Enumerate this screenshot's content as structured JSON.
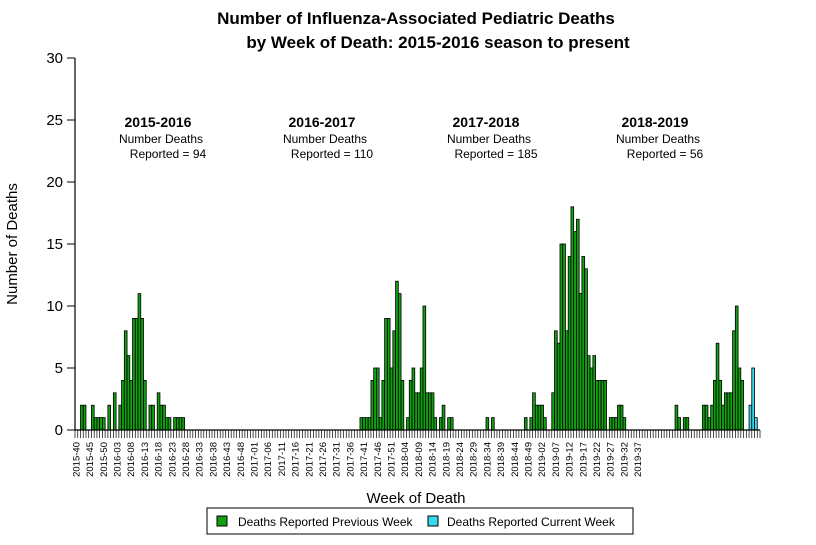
{
  "chart_data": {
    "type": "bar",
    "title_line1": "Number of Influenza-Associated Pediatric Deaths",
    "title_line2": "by Week of Death: 2015-2016 season to present",
    "xlabel": "Week of Death",
    "ylabel": "Number of Deaths",
    "ylim": [
      0,
      30
    ],
    "yticks": [
      0,
      5,
      10,
      15,
      20,
      25,
      30
    ],
    "grid": false,
    "legend_position": "bottom",
    "colors": {
      "previous": "#12a012",
      "current": "#38d8ee"
    },
    "x_tick_labels": [
      "2015-40",
      "2015-45",
      "2015-50",
      "2016-03",
      "2016-08",
      "2016-13",
      "2016-18",
      "2016-23",
      "2016-28",
      "2016-33",
      "2016-38",
      "2016-43",
      "2016-48",
      "2017-01",
      "2017-06",
      "2017-11",
      "2017-16",
      "2017-21",
      "2017-26",
      "2017-31",
      "2017-36",
      "2017-41",
      "2017-46",
      "2017-51",
      "2018-04",
      "2018-09",
      "2018-14",
      "2018-19",
      "2018-24",
      "2018-29",
      "2018-34",
      "2018-39",
      "2018-44",
      "2018-49",
      "2019-02",
      "2019-07",
      "2019-12",
      "2019-17",
      "2019-22",
      "2019-27",
      "2019-32",
      "2019-37"
    ],
    "series": [
      {
        "name": "Deaths Reported Previous Week",
        "values": [
          0,
          0,
          2,
          2,
          0,
          0,
          2,
          1,
          1,
          1,
          1,
          0,
          2,
          0,
          3,
          0,
          2,
          4,
          8,
          6,
          4,
          9,
          9,
          11,
          9,
          4,
          0,
          2,
          2,
          0,
          3,
          2,
          2,
          1,
          1,
          0,
          1,
          1,
          1,
          1,
          0,
          0,
          0,
          0,
          0,
          0,
          0,
          0,
          0,
          0,
          0,
          0,
          0,
          0,
          0,
          0,
          0,
          0,
          0,
          0,
          0,
          0,
          0,
          0,
          0,
          0,
          0,
          0,
          0,
          0,
          0,
          0,
          0,
          0,
          0,
          0,
          0,
          0,
          0,
          0,
          0,
          0,
          0,
          0,
          0,
          0,
          0,
          0,
          0,
          0,
          0,
          0,
          0,
          0,
          0,
          0,
          0,
          0,
          0,
          0,
          0,
          0,
          0,
          0,
          1,
          1,
          1,
          1,
          4,
          5,
          5,
          1,
          4,
          9,
          9,
          5,
          8,
          12,
          11,
          4,
          0,
          1,
          4,
          5,
          3,
          3,
          5,
          10,
          3,
          3,
          3,
          1,
          0,
          1,
          2,
          0,
          1,
          1,
          0,
          0,
          0,
          0,
          0,
          0,
          0,
          0,
          0,
          0,
          0,
          0,
          1,
          0,
          1,
          0,
          0,
          0,
          0,
          0,
          0,
          0,
          0,
          0,
          0,
          0,
          1,
          0,
          1,
          3,
          2,
          2,
          2,
          1,
          0,
          0,
          3,
          8,
          7,
          15,
          15,
          8,
          14,
          18,
          16,
          17,
          11,
          14,
          13,
          6,
          5,
          6,
          4,
          4,
          4,
          4,
          0,
          1,
          1,
          1,
          2,
          2,
          1,
          0,
          0,
          0,
          0,
          0,
          0,
          0,
          0,
          0,
          0,
          0,
          0,
          0,
          0,
          0,
          0,
          0,
          0,
          2,
          1,
          0,
          1,
          1,
          0,
          0,
          0,
          0,
          0,
          2,
          2,
          1,
          2,
          4,
          7,
          4,
          2,
          3,
          3,
          3,
          8,
          10,
          5,
          4
        ],
        "values_note": "weekly counts starting 2015-40"
      },
      {
        "name": "Deaths Reported Current Week",
        "values": [
          0,
          0,
          0,
          0,
          0,
          0,
          0,
          0,
          0,
          0,
          0,
          0,
          0,
          0,
          0,
          0,
          0,
          0,
          0,
          0,
          0,
          0,
          0,
          0,
          0,
          0,
          0,
          0,
          0,
          0,
          0,
          0,
          0,
          0,
          0,
          0,
          0,
          0,
          0,
          0,
          0,
          0,
          0,
          0,
          0,
          0,
          0,
          0,
          0,
          0,
          0,
          0,
          0,
          0,
          0,
          0,
          0,
          0,
          0,
          0,
          0,
          0,
          0,
          0,
          0,
          0,
          0,
          0,
          0,
          0,
          0,
          0,
          0,
          0,
          0,
          0,
          0,
          0,
          0,
          0,
          0,
          0,
          0,
          0,
          0,
          0,
          0,
          0,
          0,
          0,
          0,
          0,
          0,
          0,
          0,
          0,
          0,
          0,
          0,
          0,
          0,
          0,
          0,
          0,
          0,
          0,
          0,
          0,
          0,
          0,
          0,
          0,
          0,
          0,
          0,
          0,
          0,
          0,
          0,
          0,
          0,
          0,
          0,
          0,
          0,
          0,
          0,
          0,
          0,
          0,
          0,
          0,
          0,
          0,
          0,
          0,
          0,
          0,
          0,
          0,
          0,
          0,
          0,
          0,
          0,
          0,
          0,
          0,
          0,
          0,
          0,
          0,
          0,
          0,
          0,
          0,
          0,
          0,
          0,
          0,
          0,
          0,
          0,
          0,
          0,
          0,
          0,
          0,
          0,
          0,
          0,
          0,
          0,
          0,
          0,
          0,
          0,
          0,
          0,
          0,
          0,
          0,
          0,
          0,
          0,
          0,
          0,
          0,
          0,
          0,
          0,
          0,
          0,
          0,
          0,
          0,
          0,
          0,
          0,
          0,
          0,
          0,
          0,
          0,
          0,
          0,
          0,
          0,
          0,
          0,
          0,
          0,
          0,
          0,
          0,
          0,
          0,
          0,
          0,
          0,
          0,
          0,
          0,
          0,
          0,
          0,
          0,
          0,
          0,
          0,
          0,
          0,
          0,
          0,
          0,
          0,
          0,
          0,
          0,
          0,
          0,
          0,
          0,
          0,
          0,
          0,
          2,
          5,
          1,
          0
        ]
      }
    ],
    "annotations": [
      {
        "season": "2015-2016",
        "line1": "Number Deaths",
        "line2": "Reported = 94"
      },
      {
        "season": "2016-2017",
        "line1": "Number Deaths",
        "line2": "Reported = 110"
      },
      {
        "season": "2017-2018",
        "line1": "Number Deaths",
        "line2": "Reported = 185"
      },
      {
        "season": "2018-2019",
        "line1": "Number Deaths",
        "line2": "Reported = 56"
      }
    ]
  }
}
